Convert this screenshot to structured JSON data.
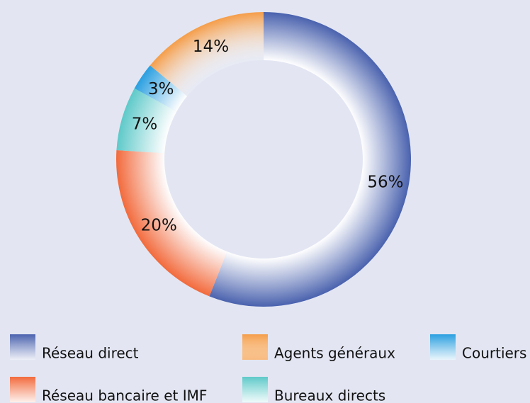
{
  "chart_data": {
    "type": "donut",
    "categories": [
      "Réseau direct",
      "Réseau bancaire et IMF",
      "Bureaux directs",
      "Courtiers",
      "Agents généraux"
    ],
    "values": [
      56,
      20,
      7,
      3,
      14
    ],
    "value_labels": [
      "56%",
      "20%",
      "7%",
      "3%",
      "14%"
    ],
    "colors": [
      "#4a62ae",
      "#f26a3c",
      "#5ec9c9",
      "#2a9fe0",
      "#f59d48"
    ]
  }
}
